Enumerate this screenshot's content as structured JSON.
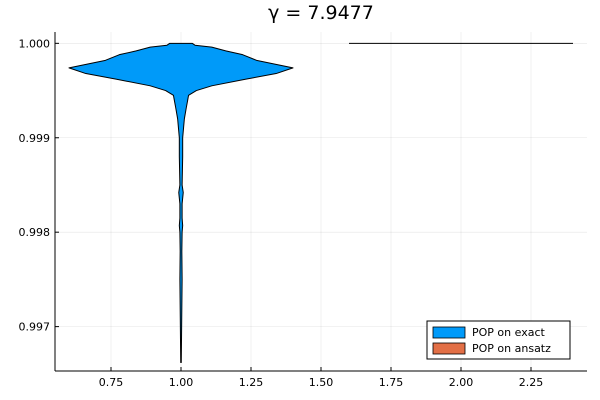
{
  "chart_data": {
    "type": "violin",
    "title": "γ = 7.9477",
    "xlabel": "",
    "ylabel": "",
    "xlim": [
      0.55,
      2.45
    ],
    "ylim": [
      0.99653,
      1.00012
    ],
    "x_ticks": [
      {
        "value": 0.75,
        "label": "0.75"
      },
      {
        "value": 1.0,
        "label": "1.00"
      },
      {
        "value": 1.25,
        "label": "1.25"
      },
      {
        "value": 1.5,
        "label": "1.50"
      },
      {
        "value": 1.75,
        "label": "1.75"
      },
      {
        "value": 2.0,
        "label": "2.00"
      },
      {
        "value": 2.25,
        "label": "2.25"
      }
    ],
    "y_ticks": [
      {
        "value": 0.997,
        "label": "0.997"
      },
      {
        "value": 0.998,
        "label": "0.998"
      },
      {
        "value": 0.999,
        "label": "0.999"
      },
      {
        "value": 1.0,
        "label": "1.000"
      }
    ],
    "grid": true,
    "legend_position": "bottom-right",
    "series": [
      {
        "name": "POP on exact",
        "color": "#009af9",
        "center": 1.0,
        "profile": [
          [
            0.99662,
            0.001
          ],
          [
            0.9975,
            0.004
          ],
          [
            0.9978,
            0.003
          ],
          [
            0.998,
            0.004
          ],
          [
            0.99807,
            0.006
          ],
          [
            0.99815,
            0.004
          ],
          [
            0.9983,
            0.004
          ],
          [
            0.99842,
            0.008
          ],
          [
            0.9985,
            0.004
          ],
          [
            0.9988,
            0.006
          ],
          [
            0.999,
            0.006
          ],
          [
            0.9991,
            0.009
          ],
          [
            0.9992,
            0.012
          ],
          [
            0.99932,
            0.019
          ],
          [
            0.9994,
            0.024
          ],
          [
            0.99945,
            0.027
          ],
          [
            0.9995,
            0.055
          ],
          [
            0.99955,
            0.11
          ],
          [
            0.99962,
            0.23
          ],
          [
            0.99968,
            0.34
          ],
          [
            0.99974,
            0.4
          ],
          [
            0.99982,
            0.27
          ],
          [
            0.99988,
            0.22
          ],
          [
            0.99992,
            0.16
          ],
          [
            0.99996,
            0.11
          ],
          [
            0.99998,
            0.05
          ],
          [
            1.0,
            0.04
          ]
        ]
      },
      {
        "name": "POP on ansatz",
        "color": "#e26f46",
        "center": 2.0,
        "profile": [
          [
            1.0,
            0.4
          ]
        ]
      }
    ]
  }
}
